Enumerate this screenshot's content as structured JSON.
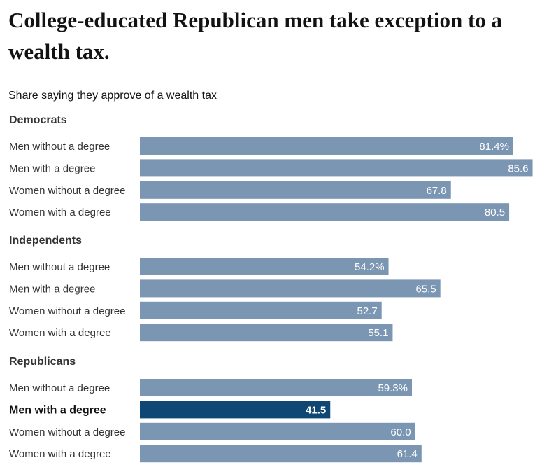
{
  "title": "College-educated Republican men take exception to a wealth tax.",
  "subtitle": "Share saying they approve of a wealth tax",
  "colors": {
    "bar": "#7b96b3",
    "highlight": "#0f4774",
    "value_text": "#ffffff"
  },
  "chart_data": {
    "type": "bar",
    "orientation": "horizontal",
    "title": "College-educated Republican men take exception to a wealth tax.",
    "subtitle": "Share saying they approve of a wealth tax",
    "unit": "%",
    "xlim": [
      0,
      100
    ],
    "grid": false,
    "groups": [
      {
        "name": "Democrats",
        "rows": [
          {
            "label": "Men without a degree",
            "value": 81.4,
            "display": "81.4%",
            "highlight": false
          },
          {
            "label": "Men with a degree",
            "value": 85.6,
            "display": "85.6",
            "highlight": false
          },
          {
            "label": "Women without a degree",
            "value": 67.8,
            "display": "67.8",
            "highlight": false
          },
          {
            "label": "Women with a degree",
            "value": 80.5,
            "display": "80.5",
            "highlight": false
          }
        ]
      },
      {
        "name": "Independents",
        "rows": [
          {
            "label": "Men without a degree",
            "value": 54.2,
            "display": "54.2%",
            "highlight": false
          },
          {
            "label": "Men with a degree",
            "value": 65.5,
            "display": "65.5",
            "highlight": false
          },
          {
            "label": "Women without a degree",
            "value": 52.7,
            "display": "52.7",
            "highlight": false
          },
          {
            "label": "Women with a degree",
            "value": 55.1,
            "display": "55.1",
            "highlight": false
          }
        ]
      },
      {
        "name": "Republicans",
        "rows": [
          {
            "label": "Men without a degree",
            "value": 59.3,
            "display": "59.3%",
            "highlight": false
          },
          {
            "label": "Men with a degree",
            "value": 41.5,
            "display": "41.5",
            "highlight": true
          },
          {
            "label": "Women without a degree",
            "value": 60.0,
            "display": "60.0",
            "highlight": false
          },
          {
            "label": "Women with a degree",
            "value": 61.4,
            "display": "61.4",
            "highlight": false
          }
        ]
      }
    ]
  }
}
